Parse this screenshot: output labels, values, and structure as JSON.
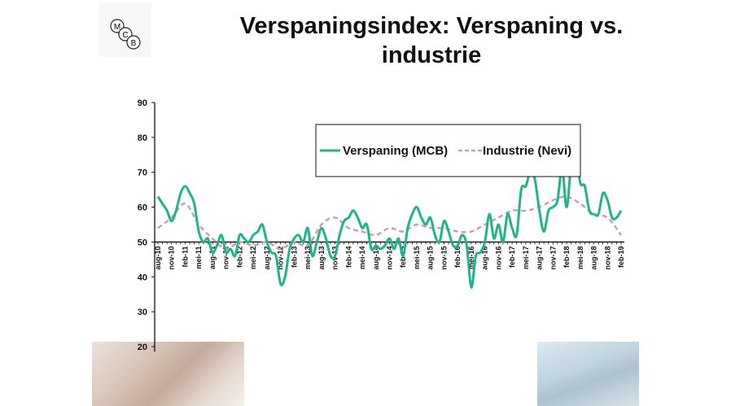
{
  "title": "Verspaningsindex: Verspaning vs. industrie",
  "logo": {
    "text": "MCB"
  },
  "chart_data": {
    "type": "line",
    "title": "Verspaningsindex: Verspaning vs. industrie",
    "xlabel": "",
    "ylabel": "",
    "ylim": [
      20,
      90
    ],
    "yticks": [
      90,
      80,
      70,
      60,
      50,
      40,
      30,
      20
    ],
    "x_axis_crosses_at": 50,
    "grid": false,
    "legend_position": "top-right",
    "x_tick_labels": [
      "aug-10",
      "nov-10",
      "feb-11",
      "mei-11",
      "aug-11",
      "nov-11",
      "feb-12",
      "mei-12",
      "aug-12",
      "nov-12",
      "feb-13",
      "mei-13",
      "aug-13",
      "nov-13",
      "feb-14",
      "mei-14",
      "aug-14",
      "nov-14",
      "feb-15",
      "mei-15",
      "aug-15",
      "nov-15",
      "feb-16",
      "mei-16",
      "aug-16",
      "nov-16",
      "feb-17",
      "mei-17",
      "aug-17",
      "nov-17",
      "feb-18",
      "mei-18",
      "aug-18",
      "nov-18",
      "feb-19"
    ],
    "series": [
      {
        "name": "Verspaning (MCB)",
        "color": "#1fb48c",
        "style": "solid",
        "frequency": "monthly, aug-10 to feb-19",
        "values": [
          63,
          61,
          59,
          56,
          59,
          64,
          66,
          64,
          61,
          53,
          50,
          51,
          47,
          49,
          52,
          47,
          48,
          46,
          52,
          51,
          50,
          52,
          53,
          55,
          50,
          47,
          46,
          38,
          40,
          48,
          51,
          52,
          50,
          54,
          46,
          50,
          54,
          51,
          46,
          46,
          52,
          56,
          57,
          59,
          57,
          54,
          55,
          48,
          49,
          48,
          49,
          51,
          48,
          51,
          46,
          54,
          58,
          60,
          57,
          55,
          57,
          52,
          50,
          56,
          53,
          49,
          49,
          52,
          49,
          37,
          46,
          47,
          50,
          58,
          51,
          55,
          50,
          58,
          54,
          52,
          65,
          66,
          70,
          68,
          59,
          53,
          59,
          60,
          62,
          71,
          60,
          72,
          76,
          67,
          66,
          59,
          58,
          58,
          64,
          62,
          57,
          57,
          59
        ]
      },
      {
        "name": "Industrie (Nevi)",
        "color": "#c9a0a8",
        "style": "dashed",
        "frequency": "quarterly, at x tick labels",
        "values": [
          54,
          57,
          61,
          55,
          51,
          48,
          50,
          49,
          50,
          48,
          50,
          49,
          55,
          57,
          54,
          53,
          52,
          54,
          53,
          55,
          54,
          54,
          53,
          53,
          55,
          57,
          59,
          59,
          60,
          62,
          63,
          61,
          58,
          57,
          52
        ]
      }
    ]
  }
}
